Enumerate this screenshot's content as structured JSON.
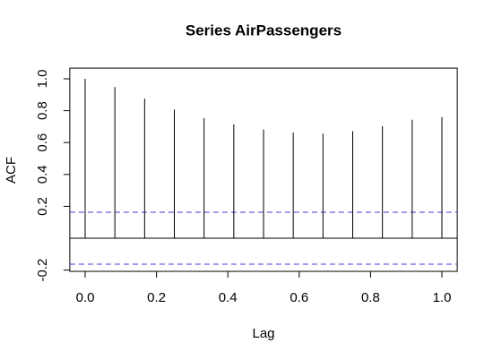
{
  "chart_data": {
    "type": "stem",
    "title": "Series  AirPassengers",
    "x_label": "Lag",
    "y_label": "ACF",
    "x": [
      0,
      0.0833,
      0.1667,
      0.25,
      0.3333,
      0.4167,
      0.5,
      0.5833,
      0.6667,
      0.75,
      0.8333,
      0.9167,
      1
    ],
    "values": [
      1.0,
      0.948,
      0.876,
      0.807,
      0.753,
      0.714,
      0.682,
      0.663,
      0.656,
      0.671,
      0.703,
      0.743,
      0.76
    ],
    "color": "#000000",
    "conf_limit": 0.163,
    "conf_color": "#3b3bdc",
    "xlim": [
      -0.043,
      1.043
    ],
    "ylim": [
      -0.208,
      1.067
    ],
    "xticks": [
      {
        "value": 0,
        "label": "0.0"
      },
      0.2,
      0.4,
      0.6,
      0.8,
      {
        "value": 1,
        "label": "1.0"
      }
    ],
    "yticks": [
      -0.2,
      0.2,
      0.4,
      0.6,
      0.8,
      {
        "value": 1,
        "label": "1.0"
      }
    ]
  }
}
